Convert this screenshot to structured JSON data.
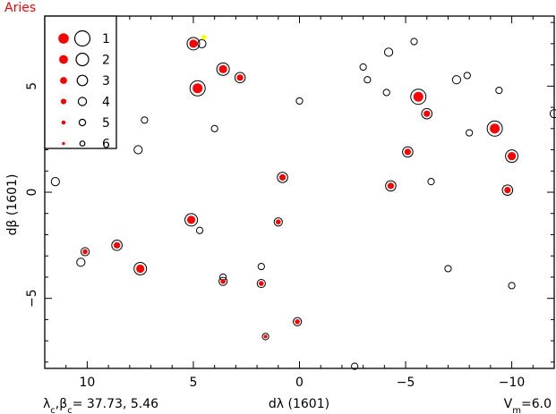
{
  "chart_data": {
    "type": "scatter",
    "title": "Aries",
    "xlabel": "dλ (1601)",
    "ylabel": "dβ (1601)",
    "xlim": [
      12,
      -12
    ],
    "ylim": [
      -8.3,
      8.3
    ],
    "x_ticks": [
      10,
      5,
      0,
      -5,
      -10
    ],
    "x_tick_labels": [
      "10",
      "5",
      "0",
      "−5",
      "−10"
    ],
    "y_ticks": [
      5,
      0,
      -5
    ],
    "y_tick_labels": [
      "5",
      "0",
      "−5"
    ],
    "center_label": "λc,βc= 37.73,  5.46",
    "center_label_parts": {
      "lambda": "λ",
      "c": "c",
      "beta": "β",
      "values": "= 37.73,  5.46"
    },
    "limit_label_parts": {
      "V": "V",
      "sub": "m",
      "value": "=6.0"
    },
    "legend": {
      "placement": "top-left",
      "magnitudes": [
        "1",
        "2",
        "3",
        "4",
        "5",
        "6"
      ]
    },
    "colors": {
      "title": "#ff0000",
      "filled": "#ff0000",
      "highlight": "#ffff00",
      "axis": "#000000"
    },
    "stars_open": [
      {
        "x": 4.6,
        "y": 7.0,
        "mag": 4
      },
      {
        "x": -4.2,
        "y": 6.6,
        "mag": 4
      },
      {
        "x": -5.4,
        "y": 7.1,
        "mag": 5
      },
      {
        "x": -3.0,
        "y": 5.9,
        "mag": 5
      },
      {
        "x": -3.2,
        "y": 5.3,
        "mag": 5
      },
      {
        "x": -4.1,
        "y": 4.7,
        "mag": 5
      },
      {
        "x": 0.0,
        "y": 4.3,
        "mag": 5
      },
      {
        "x": -7.4,
        "y": 5.3,
        "mag": 4
      },
      {
        "x": -7.9,
        "y": 5.5,
        "mag": 5
      },
      {
        "x": -9.4,
        "y": 4.8,
        "mag": 5
      },
      {
        "x": -12.0,
        "y": 3.7,
        "mag": 4
      },
      {
        "x": -8.0,
        "y": 2.8,
        "mag": 5
      },
      {
        "x": 7.3,
        "y": 3.4,
        "mag": 5
      },
      {
        "x": 4.0,
        "y": 3.0,
        "mag": 5
      },
      {
        "x": 7.6,
        "y": 2.0,
        "mag": 4
      },
      {
        "x": 11.5,
        "y": 0.5,
        "mag": 4
      },
      {
        "x": -6.2,
        "y": 0.5,
        "mag": 5
      },
      {
        "x": 4.7,
        "y": -1.8,
        "mag": 5
      },
      {
        "x": 10.3,
        "y": -3.3,
        "mag": 4
      },
      {
        "x": 1.8,
        "y": -3.5,
        "mag": 5
      },
      {
        "x": -7.0,
        "y": -3.6,
        "mag": 5
      },
      {
        "x": 3.6,
        "y": -4.0,
        "mag": 5
      },
      {
        "x": -10.0,
        "y": -4.4,
        "mag": 5
      },
      {
        "x": -2.6,
        "y": -8.2,
        "mag": 5
      }
    ],
    "stars_filled": [
      {
        "x": 5.0,
        "y": 7.0,
        "mag": 2
      },
      {
        "x": 3.6,
        "y": 5.8,
        "mag": 2
      },
      {
        "x": 2.8,
        "y": 5.4,
        "mag": 3
      },
      {
        "x": 4.8,
        "y": 4.9,
        "mag": 1
      },
      {
        "x": -5.6,
        "y": 4.5,
        "mag": 1
      },
      {
        "x": -6.0,
        "y": 3.7,
        "mag": 3
      },
      {
        "x": -9.2,
        "y": 3.0,
        "mag": 1
      },
      {
        "x": -10.0,
        "y": 1.7,
        "mag": 2
      },
      {
        "x": -5.1,
        "y": 1.9,
        "mag": 3
      },
      {
        "x": 0.8,
        "y": 0.7,
        "mag": 3
      },
      {
        "x": -4.3,
        "y": 0.3,
        "mag": 3
      },
      {
        "x": -9.8,
        "y": 0.1,
        "mag": 3
      },
      {
        "x": 5.1,
        "y": -1.3,
        "mag": 2
      },
      {
        "x": 1.0,
        "y": -1.4,
        "mag": 4
      },
      {
        "x": 10.1,
        "y": -2.8,
        "mag": 4
      },
      {
        "x": 8.6,
        "y": -2.5,
        "mag": 3
      },
      {
        "x": 7.5,
        "y": -3.6,
        "mag": 2
      },
      {
        "x": 3.6,
        "y": -4.2,
        "mag": 4
      },
      {
        "x": 1.8,
        "y": -4.3,
        "mag": 4
      },
      {
        "x": 0.1,
        "y": -6.1,
        "mag": 4
      },
      {
        "x": 1.6,
        "y": -6.8,
        "mag": 5
      }
    ],
    "stars_highlight": [
      {
        "x": 4.5,
        "y": 7.3,
        "mag": 6
      }
    ]
  }
}
